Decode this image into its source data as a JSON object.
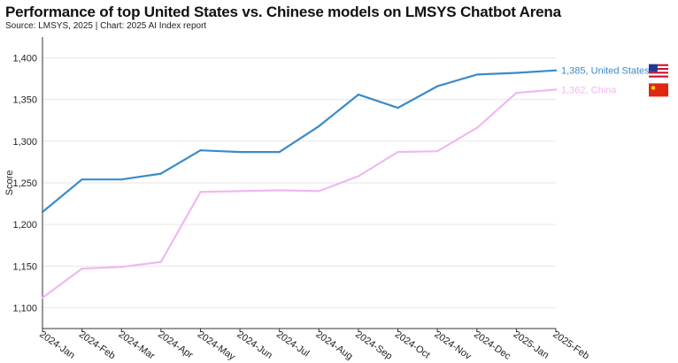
{
  "title": "Performance of top United States vs. Chinese models on LMSYS Chatbot Arena",
  "source": "Source: LMSYS, 2025 | Chart: 2025 AI Index report",
  "chart_data": {
    "type": "line",
    "ylabel": "Score",
    "xlabel": "",
    "ylim": [
      1075,
      1425
    ],
    "yticks": [
      1100,
      1150,
      1200,
      1250,
      1300,
      1350,
      1400
    ],
    "ytick_labels": [
      "1,100",
      "1,150",
      "1,200",
      "1,250",
      "1,300",
      "1,350",
      "1,400"
    ],
    "grid": "horizontal",
    "categories": [
      "2024-Jan",
      "2024-Feb",
      "2024-Mar",
      "2024-Apr",
      "2024-May",
      "2024-Jun",
      "2024-Jul",
      "2024-Aug",
      "2024-Sep",
      "2024-Oct",
      "2024-Nov",
      "2024-Dec",
      "2025-Jan",
      "2025-Feb"
    ],
    "series": [
      {
        "name": "United States",
        "color": "#3a8bc9",
        "end_label": "1,385, United States",
        "flag_icon": "us-flag-icon",
        "values": [
          1215,
          1254,
          1254,
          1261,
          1289,
          1287,
          1287,
          1318,
          1356,
          1340,
          1366,
          1380,
          1382,
          1385
        ]
      },
      {
        "name": "China",
        "color": "#f0b8f0",
        "end_label": "1,362, China",
        "flag_icon": "china-flag-icon",
        "values": [
          1112,
          1147,
          1149,
          1155,
          1239,
          1240,
          1241,
          1240,
          1258,
          1287,
          1288,
          1316,
          1358,
          1362
        ]
      }
    ]
  }
}
